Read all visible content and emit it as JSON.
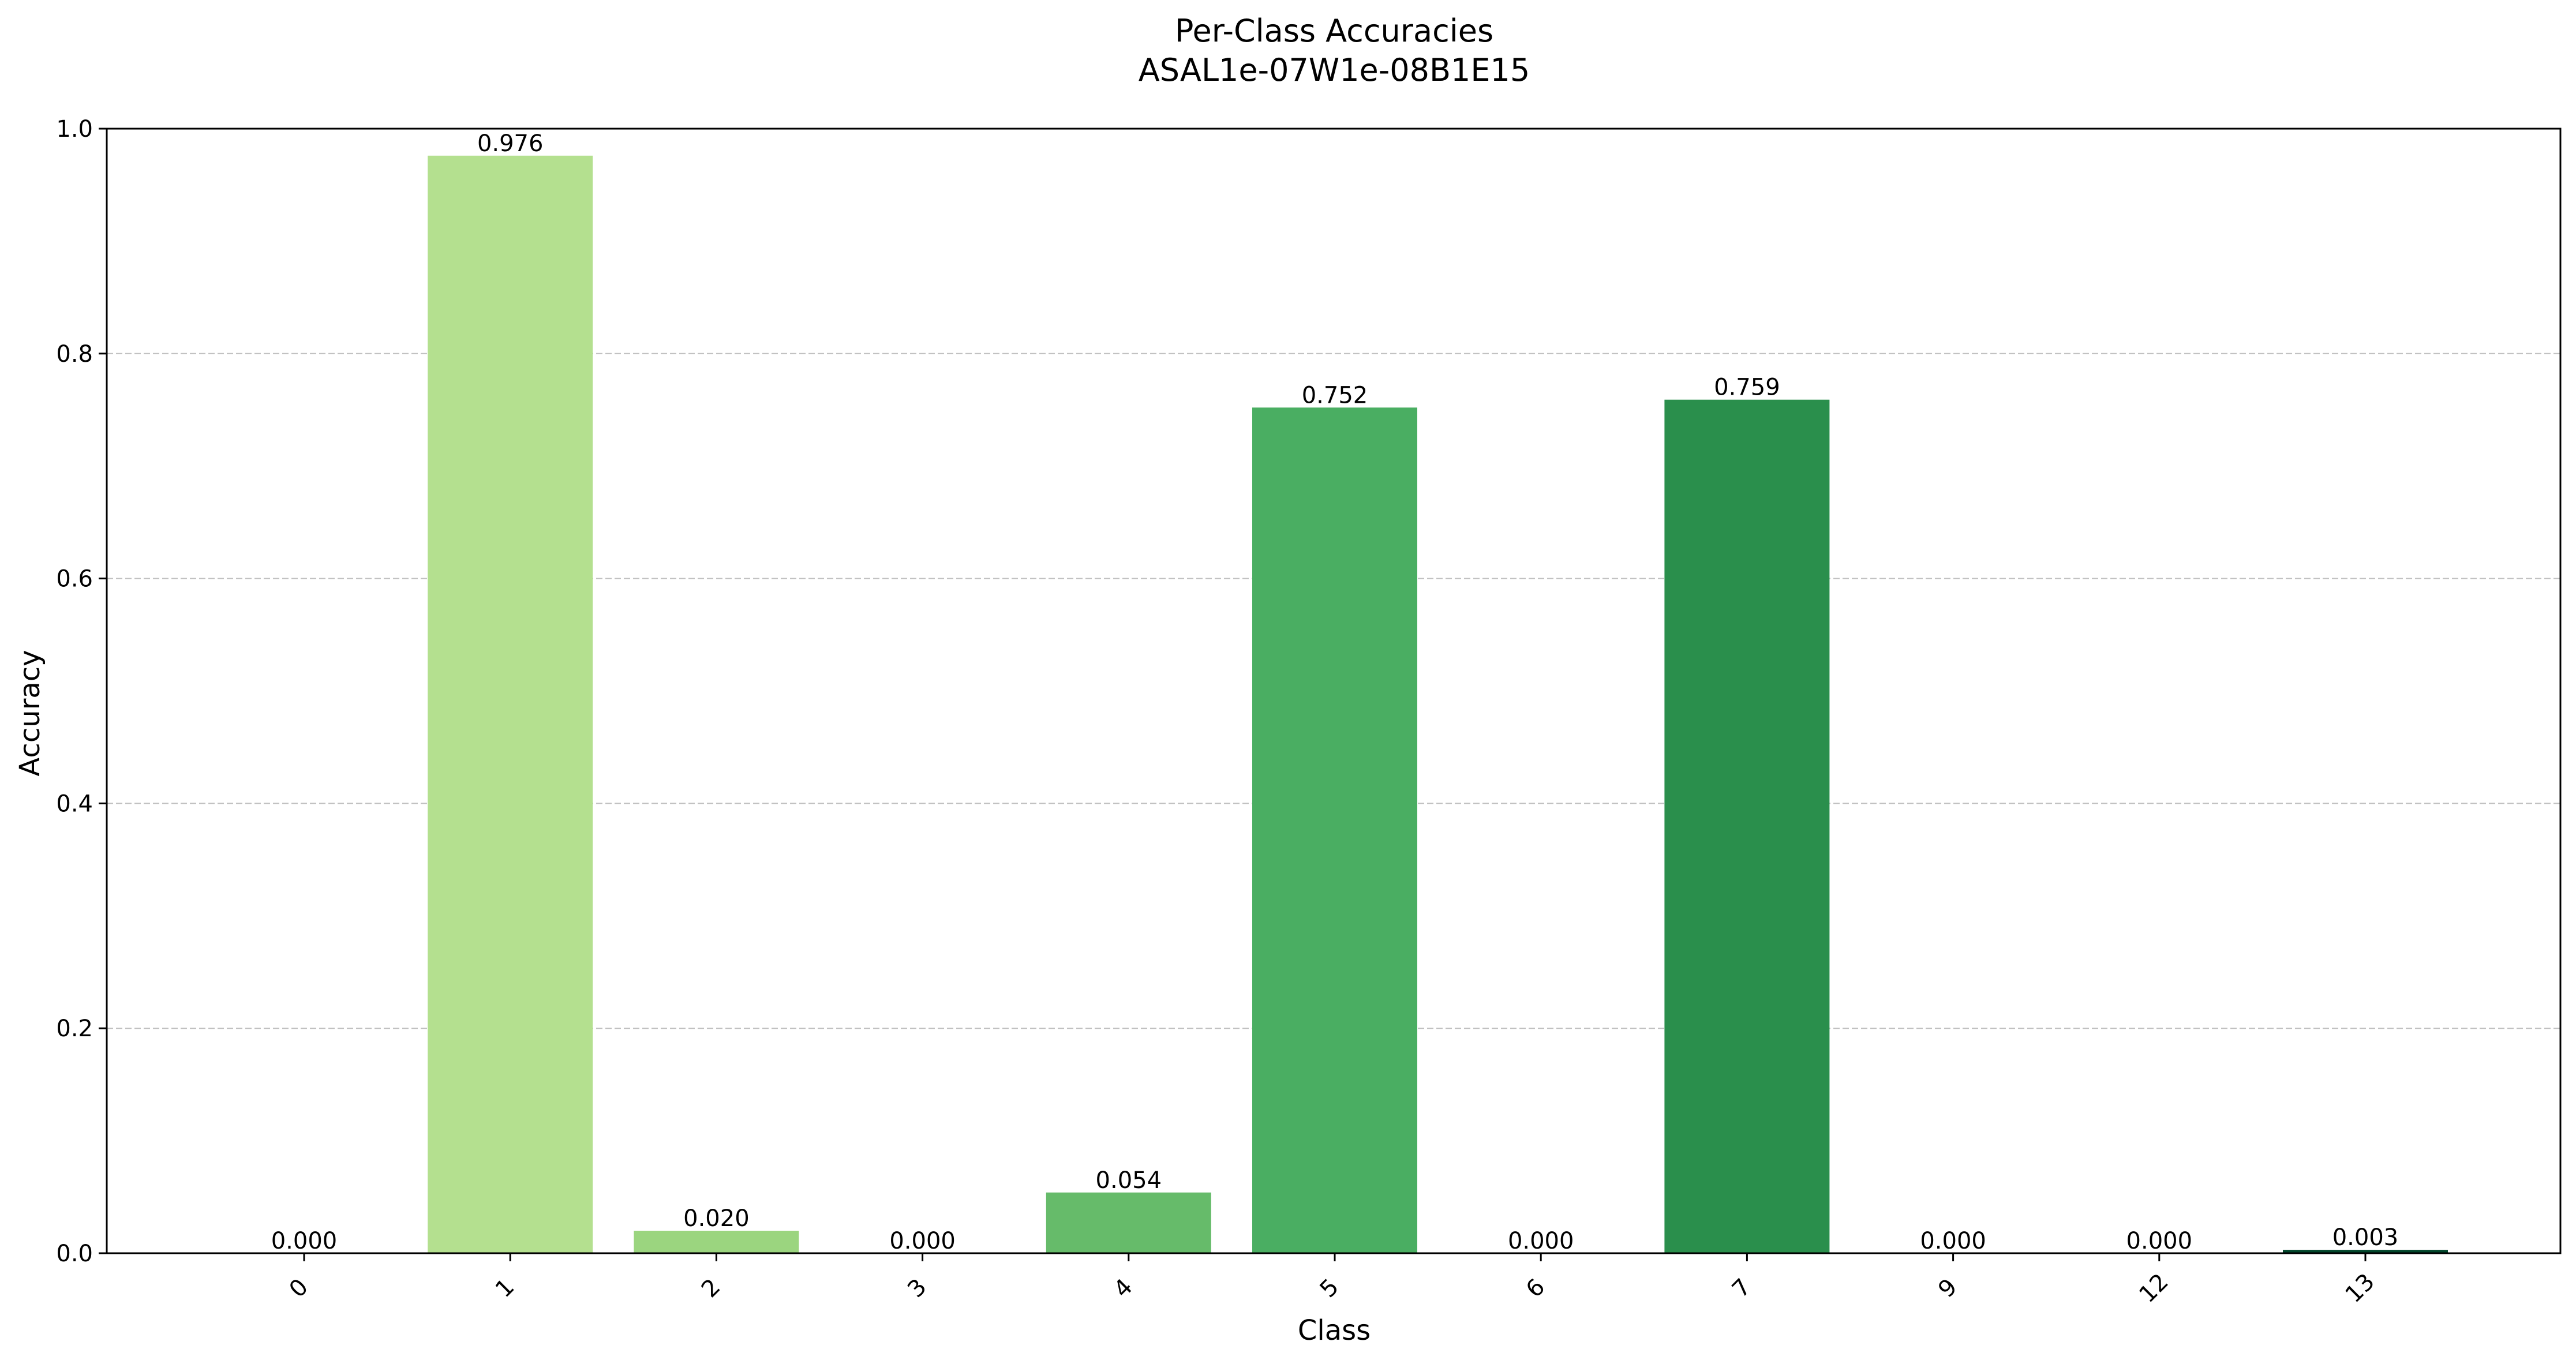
{
  "chart_data": {
    "type": "bar",
    "title": "Per-Class Accuracies",
    "subtitle": "ASAL1e-07W1e-08B1E15",
    "xlabel": "Class",
    "ylabel": "Accuracy",
    "ylim": [
      0,
      1.0
    ],
    "yticks": [
      0.0,
      0.2,
      0.4,
      0.6,
      0.8,
      1.0
    ],
    "ytick_labels": [
      "0.0",
      "0.2",
      "0.4",
      "0.6",
      "0.8",
      "1.0"
    ],
    "grid": "horizontal dashed",
    "categories": [
      "0",
      "1",
      "2",
      "3",
      "4",
      "5",
      "6",
      "7",
      "9",
      "12",
      "13"
    ],
    "values": [
      0.0,
      0.976,
      0.02,
      0.0,
      0.054,
      0.752,
      0.0,
      0.759,
      0.0,
      0.0,
      0.003
    ],
    "value_labels": [
      "0.000",
      "0.976",
      "0.020",
      "0.000",
      "0.054",
      "0.752",
      "0.000",
      "0.759",
      "0.000",
      "0.000",
      "0.003"
    ],
    "colors": [
      "#f7fcb9",
      "#b4e08f",
      "#9bd57f",
      "#81c96f",
      "#66bb6a",
      "#4aae62",
      "#39a054",
      "#2a8f4c",
      "#1f7d43",
      "#116a37",
      "#00452a"
    ]
  }
}
